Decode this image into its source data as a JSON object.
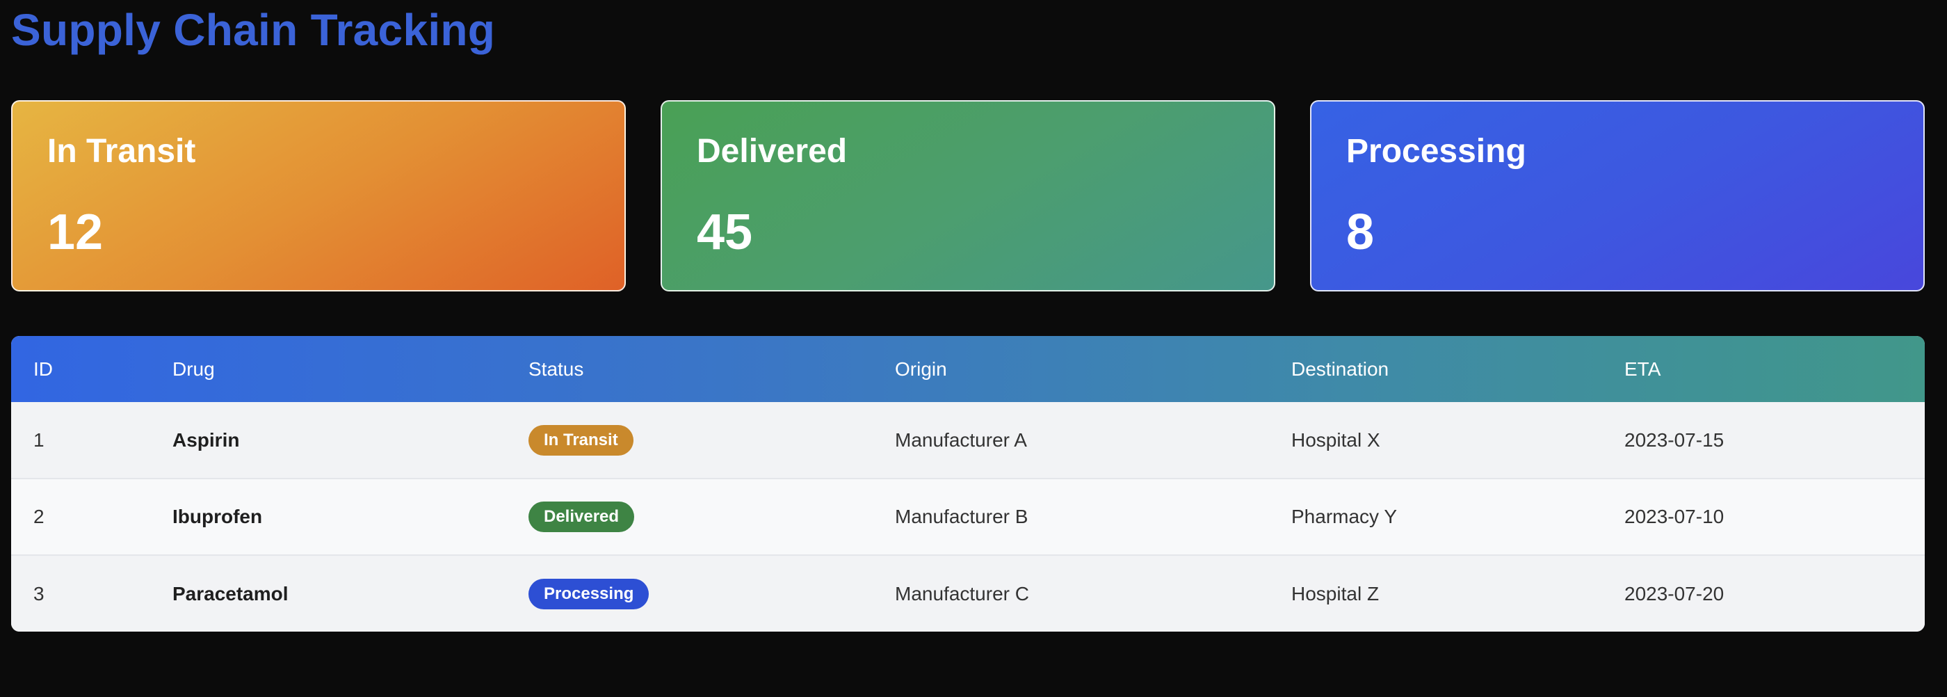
{
  "header": {
    "title": "Supply Chain Tracking"
  },
  "cards": [
    {
      "label": "In Transit",
      "value": "12"
    },
    {
      "label": "Delivered",
      "value": "45"
    },
    {
      "label": "Processing",
      "value": "8"
    }
  ],
  "table": {
    "columns": [
      "ID",
      "Drug",
      "Status",
      "Origin",
      "Destination",
      "ETA"
    ],
    "rows": [
      {
        "id": "1",
        "drug": "Aspirin",
        "status": "In Transit",
        "status_color": "#c9892c",
        "origin": "Manufacturer A",
        "destination": "Hospital X",
        "eta": "2023-07-15"
      },
      {
        "id": "2",
        "drug": "Ibuprofen",
        "status": "Delivered",
        "status_color": "#3e8444",
        "origin": "Manufacturer B",
        "destination": "Pharmacy Y",
        "eta": "2023-07-10"
      },
      {
        "id": "3",
        "drug": "Paracetamol",
        "status": "Processing",
        "status_color": "#2d4fd4",
        "origin": "Manufacturer C",
        "destination": "Hospital Z",
        "eta": "2023-07-20"
      }
    ]
  }
}
